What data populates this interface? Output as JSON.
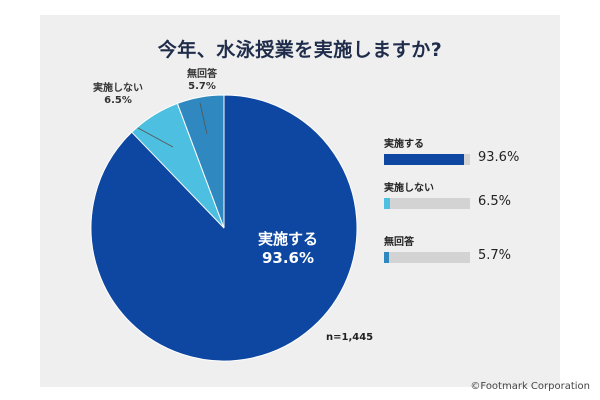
{
  "chart_data": {
    "type": "pie",
    "title": "今年、水泳授業を実施しますか?",
    "slices": [
      {
        "label": "実施する",
        "value": 93.6,
        "value_text": "93.6%",
        "color": "#0d47a1"
      },
      {
        "label": "実施しない",
        "value": 6.5,
        "value_text": "6.5%",
        "color": "#4dbfe0"
      },
      {
        "label": "無回答",
        "value": 5.7,
        "value_text": "5.7%",
        "color": "#2f88bf"
      }
    ],
    "sample_size": "n=1,445",
    "legend_position": "right"
  },
  "colors": {
    "background": "#efefef",
    "track": "#d3d3d3"
  },
  "footer": {
    "credit": "©Footmark Corporation"
  }
}
